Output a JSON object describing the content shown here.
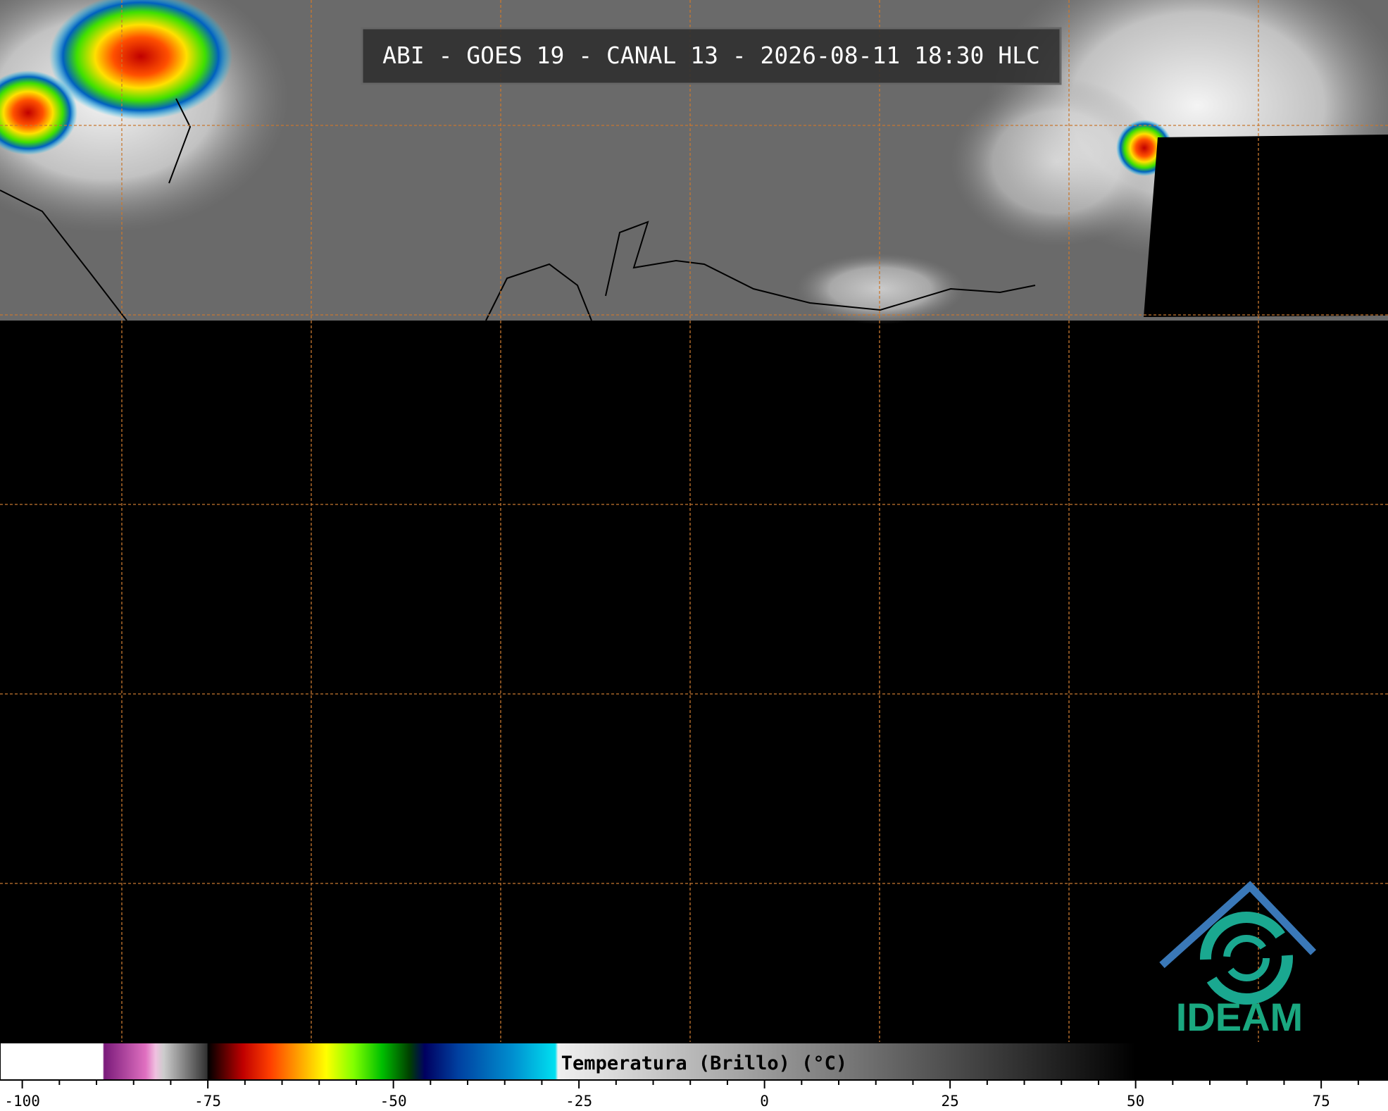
{
  "title": "ABI - GOES 19 - CANAL 13 - 2026-08-11 18:30 HLC",
  "colorbar": {
    "label": "Temperatura (Brillo) (°C)",
    "xlim": [
      -103,
      84
    ],
    "xticks": [
      -100,
      -75,
      -50,
      -25,
      0,
      25,
      50,
      75
    ],
    "minor_xticks": [
      -95,
      -90,
      -85,
      -80,
      -70,
      -65,
      -60,
      -55,
      -45,
      -40,
      -35,
      -30,
      -20,
      -15,
      -10,
      -5,
      5,
      10,
      15,
      20,
      30,
      35,
      40,
      45,
      55,
      60,
      65,
      70,
      80
    ]
  },
  "logo": {
    "text": "IDEAM"
  }
}
